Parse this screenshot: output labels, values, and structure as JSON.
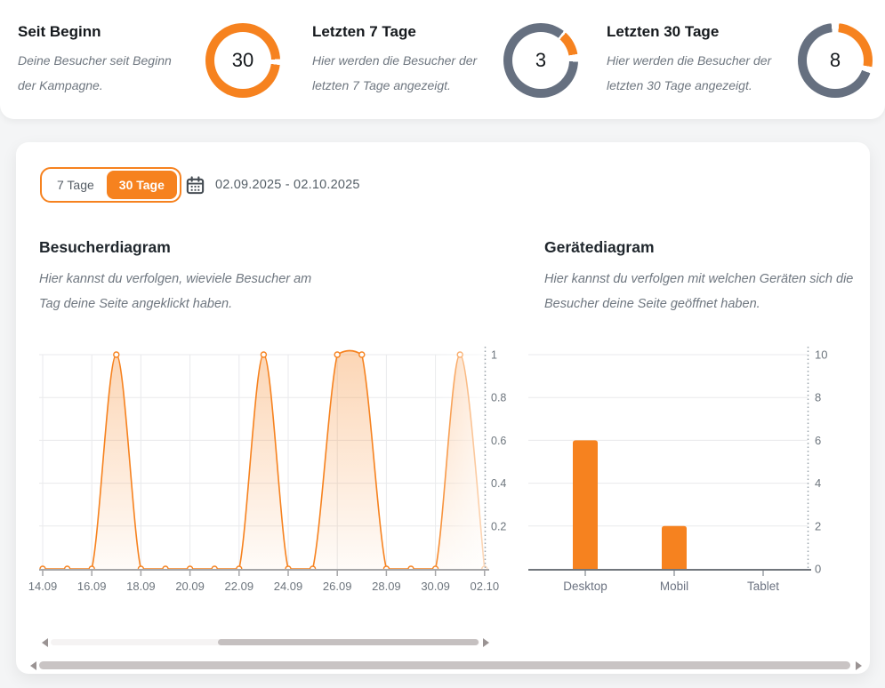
{
  "accent_color": "#f6821f",
  "ring_gray": "#667080",
  "stats": [
    {
      "title": "Seit Beginn",
      "description": "Deine Besucher seit Beginn der Kampagne.",
      "value": "30",
      "donut": {
        "arcs": [
          {
            "color": "#f6821f",
            "from": 0,
            "to": 88
          },
          {
            "color": "#ffffff",
            "from": 88,
            "to": 97
          },
          {
            "color": "#f6821f",
            "from": 97,
            "to": 360
          }
        ]
      }
    },
    {
      "title": "Letzten 7 Tage",
      "description": "Hier werden die Besucher der letzten 7 Tage angezeigt.",
      "value": "3",
      "donut": {
        "arcs": [
          {
            "color": "#667080",
            "from": 0,
            "to": 38
          },
          {
            "color": "#ffffff",
            "from": 38,
            "to": 42
          },
          {
            "color": "#f6821f",
            "from": 42,
            "to": 80
          },
          {
            "color": "#ffffff",
            "from": 80,
            "to": 92
          },
          {
            "color": "#667080",
            "from": 92,
            "to": 360
          }
        ]
      }
    },
    {
      "title": "Letzten 30 Tage",
      "description": "Hier werden die Besucher der letzten 30 Tage angezeigt.",
      "value": "8",
      "donut": {
        "arcs": [
          {
            "color": "#ffffff",
            "from": 0,
            "to": 6
          },
          {
            "color": "#f6821f",
            "from": 6,
            "to": 100
          },
          {
            "color": "#ffffff",
            "from": 100,
            "to": 110
          },
          {
            "color": "#667080",
            "from": 110,
            "to": 354
          },
          {
            "color": "#ffffff",
            "from": 354,
            "to": 360
          }
        ]
      }
    }
  ],
  "toolbar": {
    "tab_7_label": "7 Tage",
    "tab_30_label": "30 Tage",
    "active_tab": "30 Tage",
    "calendar_icon": "calendar-icon",
    "date_range": "02.09.2025 - 02.10.2025"
  },
  "chart_data": [
    {
      "type": "area",
      "title": "Besucherdiagram",
      "subtitle": "Hier kannst du verfolgen, wieviele Besucher am Tag deine Seite angeklickt haben.",
      "x": [
        "14.09",
        "15.09",
        "16.09",
        "17.09",
        "18.09",
        "19.09",
        "20.09",
        "21.09",
        "22.09",
        "23.09",
        "24.09",
        "25.09",
        "26.09",
        "27.09",
        "28.09",
        "29.09",
        "30.09",
        "01.10",
        "02.10"
      ],
      "values": [
        0,
        0,
        0,
        1,
        0,
        0,
        0,
        0,
        0,
        1,
        0,
        0,
        1,
        1,
        0,
        0,
        0,
        1,
        0
      ],
      "x_tick_labels": [
        "14.09",
        "16.09",
        "18.09",
        "20.09",
        "22.09",
        "24.09",
        "26.09",
        "28.09",
        "30.09",
        "02.10"
      ],
      "y_ticks": [
        0.2,
        0.4,
        0.6,
        0.8,
        1
      ],
      "ylim": [
        0,
        1
      ],
      "line_color": "#f6821f",
      "grid": true,
      "y_axis_position": "right"
    },
    {
      "type": "bar",
      "title": "Gerätediagram",
      "subtitle": "Hier kannst du verfolgen mit welchen Geräten sich die Besucher deine Seite geöffnet haben.",
      "categories": [
        "Desktop",
        "Mobil",
        "Tablet"
      ],
      "values": [
        6,
        2,
        0
      ],
      "y_ticks": [
        0,
        2,
        4,
        6,
        8,
        10
      ],
      "ylim": [
        0,
        10
      ],
      "bar_color": "#f6821f",
      "grid": true,
      "y_axis_position": "right"
    }
  ]
}
